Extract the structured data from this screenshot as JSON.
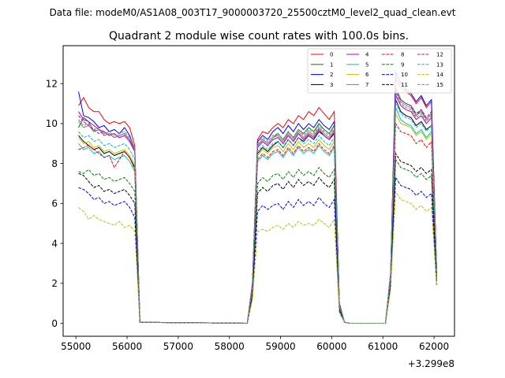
{
  "chart_data": {
    "type": "line",
    "suptitle": "Data file: modeM0/AS1A08_003T17_9000003720_25500cztM0_level2_quad_clean.evt",
    "title": "Quadrant 2 module wise count rates with 100.0s bins.",
    "xlabel": "",
    "ylabel": "",
    "x_offset_label": "+3.299e8",
    "xlim": [
      54750,
      62400
    ],
    "ylim": [
      -0.65,
      13.9
    ],
    "xticks": [
      55000,
      56000,
      57000,
      58000,
      59000,
      60000,
      61000,
      62000
    ],
    "yticks": [
      0,
      2,
      4,
      6,
      8,
      10,
      12
    ],
    "xtick_labels": [
      "55000",
      "56000",
      "57000",
      "58000",
      "59000",
      "60000",
      "61000",
      "62000"
    ],
    "ytick_labels": [
      "0",
      "2",
      "4",
      "6",
      "8",
      "10",
      "12"
    ],
    "legend_placement": "top-right",
    "x": [
      55050,
      55150,
      55250,
      55350,
      55450,
      55550,
      55650,
      55750,
      55850,
      55950,
      56050,
      56150,
      56250,
      58350,
      58450,
      58550,
      58650,
      58750,
      58850,
      58950,
      59050,
      59150,
      59250,
      59350,
      59450,
      59550,
      59650,
      59750,
      59850,
      59950,
      60050,
      60150,
      60250,
      60350,
      61050,
      61150,
      61250,
      61350,
      61450,
      61550,
      61650,
      61750,
      61850,
      61950,
      62050
    ],
    "series": [
      {
        "name": "0",
        "color": "#ff0000",
        "dash": "solid",
        "values": [
          10.9,
          11.3,
          10.8,
          10.6,
          10.6,
          10.2,
          10.0,
          10.1,
          10.0,
          10.1,
          9.8,
          8.9,
          0.05,
          0,
          2.0,
          9.2,
          9.6,
          9.5,
          9.8,
          10.0,
          9.8,
          10.2,
          10.0,
          10.4,
          10.2,
          10.6,
          10.4,
          10.8,
          10.5,
          10.2,
          10.6,
          1.0,
          0.05,
          0,
          0,
          2.5,
          12.3,
          11.8,
          11.6,
          11.4,
          11.0,
          11.3,
          10.8,
          11.1,
          2.8
        ]
      },
      {
        "name": "1",
        "color": "#008000",
        "dash": "solid",
        "values": [
          9.8,
          10.3,
          10.1,
          9.6,
          9.7,
          9.4,
          9.5,
          9.3,
          9.4,
          9.5,
          9.2,
          8.6,
          0.05,
          0,
          1.9,
          8.9,
          9.2,
          9.0,
          9.3,
          9.5,
          9.2,
          9.6,
          9.3,
          9.7,
          9.5,
          9.8,
          9.6,
          10.0,
          9.7,
          9.5,
          9.9,
          0.9,
          0.05,
          0,
          0,
          2.4,
          11.8,
          11.2,
          11.0,
          10.9,
          10.4,
          10.7,
          10.2,
          10.5,
          2.7
        ]
      },
      {
        "name": "2",
        "color": "#0000ff",
        "dash": "solid",
        "values": [
          11.6,
          10.4,
          10.3,
          10.1,
          9.8,
          9.9,
          9.6,
          9.7,
          9.5,
          9.8,
          9.4,
          8.7,
          0.05,
          0,
          2.0,
          9.1,
          9.4,
          9.2,
          9.6,
          9.8,
          9.5,
          9.9,
          9.6,
          10.0,
          9.7,
          10.0,
          9.8,
          10.2,
          9.9,
          9.7,
          10.1,
          1.0,
          0.05,
          0,
          0,
          2.5,
          12.6,
          12.0,
          11.7,
          11.5,
          11.1,
          11.4,
          10.9,
          11.2,
          2.8
        ]
      },
      {
        "name": "3",
        "color": "#000000",
        "dash": "solid",
        "values": [
          9.4,
          9.1,
          8.9,
          8.7,
          8.8,
          8.5,
          8.6,
          8.4,
          8.5,
          8.6,
          8.3,
          7.8,
          0.05,
          0,
          1.8,
          8.5,
          8.8,
          8.6,
          8.9,
          9.1,
          8.8,
          9.2,
          8.9,
          9.3,
          9.1,
          9.4,
          9.2,
          9.6,
          9.4,
          9.2,
          9.5,
          0.9,
          0.05,
          0,
          0,
          2.3,
          11.2,
          10.6,
          10.4,
          10.3,
          9.9,
          10.1,
          9.7,
          9.9,
          2.5
        ]
      },
      {
        "name": "4",
        "color": "#bf00bf",
        "dash": "solid",
        "values": [
          10.6,
          10.2,
          10.1,
          9.9,
          9.7,
          9.6,
          9.4,
          9.5,
          9.3,
          9.4,
          9.1,
          8.6,
          0.05,
          0,
          1.9,
          8.8,
          9.1,
          8.9,
          9.2,
          9.3,
          9.0,
          9.4,
          9.1,
          9.5,
          9.2,
          9.5,
          9.3,
          9.7,
          9.4,
          9.2,
          9.6,
          0.9,
          0.05,
          0,
          0,
          2.4,
          11.4,
          10.9,
          10.7,
          10.6,
          10.2,
          10.4,
          10.0,
          10.3,
          2.7
        ]
      },
      {
        "name": "5",
        "color": "#00bfbf",
        "dash": "solid",
        "values": [
          9.0,
          8.7,
          8.8,
          8.5,
          8.6,
          8.3,
          8.4,
          8.2,
          8.3,
          8.4,
          8.1,
          7.6,
          0.05,
          0,
          1.7,
          8.1,
          8.4,
          8.2,
          8.5,
          8.6,
          8.3,
          8.7,
          8.4,
          8.8,
          8.5,
          8.7,
          8.5,
          8.9,
          8.6,
          8.4,
          8.8,
          0.8,
          0.05,
          0,
          0,
          2.2,
          10.8,
          10.2,
          10.0,
          9.9,
          9.5,
          9.7,
          9.3,
          9.6,
          2.5
        ]
      },
      {
        "name": "6",
        "color": "#bfbf00",
        "dash": "solid",
        "values": [
          9.3,
          9.0,
          9.1,
          8.8,
          8.9,
          8.6,
          8.7,
          8.5,
          8.6,
          8.7,
          8.4,
          7.9,
          0.05,
          0,
          1.8,
          8.4,
          8.7,
          8.5,
          8.8,
          8.9,
          8.6,
          9.0,
          8.7,
          9.1,
          8.8,
          9.0,
          8.8,
          9.2,
          8.9,
          8.7,
          9.1,
          0.9,
          0.05,
          0,
          0,
          2.3,
          10.5,
          10.0,
          9.9,
          9.8,
          9.4,
          9.6,
          9.2,
          9.5,
          2.5
        ]
      },
      {
        "name": "7",
        "color": "#808080",
        "dash": "solid",
        "values": [
          10.1,
          9.8,
          9.9,
          9.6,
          9.7,
          9.4,
          9.5,
          9.3,
          9.4,
          9.5,
          9.2,
          8.7,
          0.05,
          0,
          1.9,
          8.9,
          9.2,
          9.0,
          9.3,
          9.4,
          9.1,
          9.5,
          9.2,
          9.6,
          9.3,
          9.6,
          9.4,
          9.8,
          9.5,
          9.3,
          9.7,
          0.9,
          0.05,
          0,
          0,
          2.4,
          11.6,
          11.1,
          10.9,
          10.8,
          10.4,
          10.6,
          10.2,
          10.5,
          2.7
        ]
      },
      {
        "name": "8",
        "color": "#ff0000",
        "dash": "dashed",
        "values": [
          8.7,
          8.8,
          8.9,
          8.7,
          8.5,
          8.3,
          8.4,
          7.8,
          8.2,
          8.6,
          8.3,
          7.7,
          0.05,
          0,
          1.7,
          8.2,
          8.5,
          8.3,
          8.6,
          8.7,
          8.4,
          8.8,
          8.5,
          8.9,
          8.6,
          8.8,
          8.6,
          9.0,
          8.7,
          8.5,
          8.9,
          0.8,
          0.05,
          0,
          0,
          2.2,
          10.0,
          9.6,
          9.5,
          9.4,
          9.0,
          9.2,
          8.8,
          9.1,
          2.4
        ]
      },
      {
        "name": "9",
        "color": "#008000",
        "dash": "dashed",
        "values": [
          7.6,
          7.5,
          7.7,
          7.4,
          7.5,
          7.2,
          7.3,
          7.1,
          7.2,
          7.3,
          7.0,
          6.6,
          0.05,
          0,
          1.5,
          7.0,
          7.3,
          7.1,
          7.4,
          7.5,
          7.2,
          7.6,
          7.3,
          7.7,
          7.4,
          7.6,
          7.4,
          7.8,
          7.5,
          7.3,
          7.7,
          0.7,
          0.05,
          0,
          0,
          2.0,
          8.2,
          7.8,
          7.7,
          7.6,
          7.3,
          7.5,
          7.2,
          7.4,
          2.1
        ]
      },
      {
        "name": "10",
        "color": "#0000ff",
        "dash": "dashed",
        "values": [
          6.8,
          6.7,
          6.5,
          6.2,
          6.3,
          6.0,
          6.1,
          5.9,
          6.0,
          6.1,
          5.8,
          5.3,
          0.05,
          0,
          1.3,
          5.6,
          5.9,
          5.7,
          5.9,
          6.0,
          5.7,
          6.1,
          5.8,
          6.2,
          5.9,
          6.1,
          5.9,
          6.3,
          6.0,
          5.8,
          6.2,
          0.6,
          0.05,
          0,
          0,
          1.8,
          7.3,
          6.9,
          6.8,
          6.7,
          6.4,
          6.6,
          6.3,
          6.5,
          1.9
        ]
      },
      {
        "name": "11",
        "color": "#000000",
        "dash": "dashed",
        "values": [
          7.5,
          7.4,
          7.1,
          6.8,
          6.9,
          6.6,
          6.7,
          6.5,
          6.6,
          6.7,
          6.4,
          6.0,
          0.05,
          0,
          1.4,
          6.5,
          6.8,
          6.6,
          6.9,
          7.0,
          6.7,
          7.1,
          6.8,
          7.2,
          6.9,
          7.1,
          6.9,
          7.3,
          7.0,
          6.8,
          7.2,
          0.7,
          0.05,
          0,
          0,
          1.9,
          8.5,
          8.1,
          8.0,
          7.9,
          7.6,
          7.8,
          7.5,
          7.7,
          2.2
        ]
      },
      {
        "name": "12",
        "color": "#bf00bf",
        "dash": "dashed",
        "values": [
          10.4,
          10.1,
          9.9,
          9.7,
          9.5,
          9.6,
          9.4,
          9.5,
          9.3,
          9.4,
          9.1,
          8.6,
          0.05,
          0,
          1.9,
          8.8,
          9.1,
          8.9,
          9.2,
          9.3,
          9.0,
          9.4,
          9.1,
          9.5,
          9.2,
          9.5,
          9.3,
          9.7,
          9.4,
          9.2,
          9.6,
          0.9,
          0.05,
          0,
          0,
          2.4,
          11.7,
          11.2,
          11.0,
          10.9,
          10.5,
          10.7,
          10.3,
          10.6,
          2.7
        ]
      },
      {
        "name": "13",
        "color": "#00bfbf",
        "dash": "dashed",
        "values": [
          9.6,
          9.3,
          9.4,
          9.1,
          9.2,
          8.9,
          9.0,
          8.8,
          8.9,
          9.0,
          8.7,
          8.2,
          0.05,
          0,
          1.8,
          8.6,
          8.9,
          8.7,
          9.0,
          9.1,
          8.8,
          9.2,
          8.9,
          9.3,
          9.0,
          9.2,
          9.0,
          9.4,
          9.1,
          8.9,
          9.3,
          0.9,
          0.05,
          0,
          0,
          2.3,
          11.0,
          10.5,
          10.3,
          10.2,
          9.8,
          10.0,
          9.6,
          9.9,
          2.6
        ]
      },
      {
        "name": "14",
        "color": "#bfbf00",
        "dash": "dashed",
        "values": [
          5.8,
          5.6,
          5.2,
          5.4,
          5.2,
          5.1,
          5.0,
          4.9,
          5.1,
          4.8,
          4.9,
          4.6,
          0.05,
          0,
          1.2,
          4.6,
          4.7,
          4.6,
          4.8,
          4.9,
          4.7,
          5.0,
          4.8,
          5.1,
          4.9,
          5.0,
          4.9,
          5.2,
          5.0,
          4.8,
          5.2,
          0.5,
          0.05,
          0,
          0,
          1.7,
          6.6,
          6.2,
          6.1,
          6.0,
          5.7,
          5.9,
          5.6,
          5.8,
          1.9
        ]
      },
      {
        "name": "15",
        "color": "#808080",
        "dash": "dashed",
        "values": [
          10.2,
          9.9,
          10.0,
          9.7,
          9.8,
          9.5,
          9.6,
          9.4,
          9.5,
          9.6,
          9.3,
          8.8,
          0.05,
          0,
          1.9,
          9.0,
          9.3,
          9.1,
          9.4,
          9.5,
          9.2,
          9.6,
          9.3,
          9.7,
          9.4,
          9.7,
          9.5,
          9.9,
          9.6,
          9.4,
          9.8,
          0.9,
          0.05,
          0,
          0,
          2.4,
          11.5,
          11.0,
          10.8,
          10.7,
          10.3,
          10.5,
          10.1,
          10.4,
          2.7
        ]
      }
    ]
  }
}
